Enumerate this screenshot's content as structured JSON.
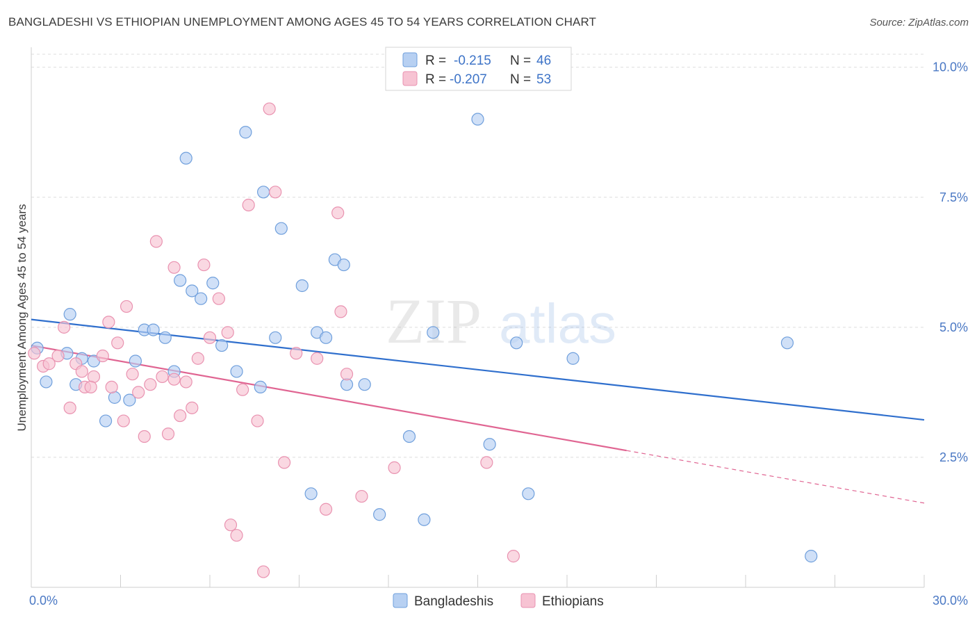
{
  "header": {
    "title": "BANGLADESHI VS ETHIOPIAN UNEMPLOYMENT AMONG AGES 45 TO 54 YEARS CORRELATION CHART",
    "source": "Source: ZipAtlas.com"
  },
  "watermark": {
    "zip": "ZIP",
    "atlas": "atlas"
  },
  "stats_legend": [
    {
      "r_label": "R =",
      "r_value": "-0.215",
      "n_label": "N =",
      "n_value": "46"
    },
    {
      "r_label": "R =",
      "r_value": "-0.207",
      "n_label": "N =",
      "n_value": "53"
    }
  ],
  "chart_data": {
    "type": "scatter",
    "title": "BANGLADESHI VS ETHIOPIAN UNEMPLOYMENT AMONG AGES 45 TO 54 YEARS CORRELATION CHART",
    "xlabel": "",
    "ylabel": "Unemployment Among Ages 45 to 54 years",
    "xlim": [
      0,
      30
    ],
    "ylim": [
      0,
      10.25
    ],
    "x_tick_labels": [
      "0.0%",
      "30.0%"
    ],
    "y_ticks": [
      2.5,
      5.0,
      7.5,
      10.0
    ],
    "y_tick_labels": [
      "2.5%",
      "5.0%",
      "7.5%",
      "10.0%"
    ],
    "grid": true,
    "legend_position": "bottom-center",
    "colors": {
      "bangladeshis_fill": "#b7d0f2",
      "bangladeshis_stroke": "#6f9fdc",
      "bangladeshis_line": "#2f6fcd",
      "ethiopians_fill": "#f7c3d3",
      "ethiopians_stroke": "#e992b0",
      "ethiopians_line": "#e06592"
    },
    "series": [
      {
        "name": "Bangladeshis",
        "points": [
          [
            0.2,
            4.6
          ],
          [
            0.5,
            3.95
          ],
          [
            1.2,
            4.5
          ],
          [
            1.5,
            3.9
          ],
          [
            1.7,
            4.4
          ],
          [
            2.1,
            4.35
          ],
          [
            2.5,
            3.2
          ],
          [
            2.8,
            3.65
          ],
          [
            3.3,
            3.6
          ],
          [
            3.5,
            4.35
          ],
          [
            3.8,
            4.95
          ],
          [
            4.1,
            4.95
          ],
          [
            4.5,
            4.8
          ],
          [
            4.8,
            4.15
          ],
          [
            5.0,
            5.9
          ],
          [
            5.2,
            8.25
          ],
          [
            5.4,
            5.7
          ],
          [
            5.7,
            5.55
          ],
          [
            6.1,
            5.85
          ],
          [
            6.4,
            4.65
          ],
          [
            6.9,
            4.15
          ],
          [
            7.2,
            8.75
          ],
          [
            7.7,
            3.85
          ],
          [
            7.8,
            7.6
          ],
          [
            8.2,
            4.8
          ],
          [
            8.4,
            6.9
          ],
          [
            9.1,
            5.8
          ],
          [
            9.4,
            1.8
          ],
          [
            9.6,
            4.9
          ],
          [
            9.9,
            4.8
          ],
          [
            10.2,
            6.3
          ],
          [
            10.5,
            6.2
          ],
          [
            10.6,
            3.9
          ],
          [
            11.2,
            3.9
          ],
          [
            11.7,
            1.4
          ],
          [
            12.7,
            2.9
          ],
          [
            13.2,
            1.3
          ],
          [
            13.5,
            4.9
          ],
          [
            15.0,
            9.0
          ],
          [
            15.4,
            2.75
          ],
          [
            16.3,
            4.7
          ],
          [
            16.7,
            1.8
          ],
          [
            18.2,
            4.4
          ],
          [
            25.4,
            4.7
          ],
          [
            26.2,
            0.6
          ],
          [
            1.3,
            5.25
          ]
        ]
      },
      {
        "name": "Ethiopians",
        "points": [
          [
            0.1,
            4.5
          ],
          [
            0.4,
            4.25
          ],
          [
            0.6,
            4.3
          ],
          [
            0.9,
            4.45
          ],
          [
            1.1,
            5.0
          ],
          [
            1.3,
            3.45
          ],
          [
            1.5,
            4.3
          ],
          [
            1.7,
            4.15
          ],
          [
            1.8,
            3.85
          ],
          [
            2.1,
            4.05
          ],
          [
            2.4,
            4.45
          ],
          [
            2.6,
            5.1
          ],
          [
            2.7,
            3.85
          ],
          [
            2.9,
            4.7
          ],
          [
            3.1,
            3.2
          ],
          [
            3.2,
            5.4
          ],
          [
            3.4,
            4.1
          ],
          [
            3.6,
            3.75
          ],
          [
            3.8,
            2.9
          ],
          [
            4.0,
            3.9
          ],
          [
            4.2,
            6.65
          ],
          [
            4.4,
            4.05
          ],
          [
            4.6,
            2.95
          ],
          [
            4.8,
            6.15
          ],
          [
            5.0,
            3.3
          ],
          [
            5.2,
            3.95
          ],
          [
            5.4,
            3.45
          ],
          [
            5.6,
            4.4
          ],
          [
            5.8,
            6.2
          ],
          [
            6.0,
            4.8
          ],
          [
            6.3,
            5.55
          ],
          [
            6.6,
            4.9
          ],
          [
            6.7,
            1.2
          ],
          [
            6.9,
            1.0
          ],
          [
            7.1,
            3.8
          ],
          [
            7.3,
            7.35
          ],
          [
            7.6,
            3.2
          ],
          [
            7.8,
            0.3
          ],
          [
            8.0,
            9.2
          ],
          [
            8.2,
            7.6
          ],
          [
            8.5,
            2.4
          ],
          [
            8.9,
            4.5
          ],
          [
            9.6,
            4.4
          ],
          [
            9.9,
            1.5
          ],
          [
            10.3,
            7.2
          ],
          [
            10.4,
            5.3
          ],
          [
            10.6,
            4.1
          ],
          [
            11.1,
            1.75
          ],
          [
            12.2,
            2.3
          ],
          [
            15.3,
            2.4
          ],
          [
            16.2,
            0.6
          ],
          [
            4.8,
            4.0
          ],
          [
            2.0,
            3.85
          ]
        ]
      }
    ],
    "trendlines": [
      {
        "name": "Bangladeshis",
        "x": [
          0,
          30
        ],
        "y": [
          5.15,
          3.22
        ],
        "dashed_from_x": null
      },
      {
        "name": "Ethiopians",
        "x": [
          0,
          30
        ],
        "y": [
          4.65,
          1.62
        ],
        "dashed_from_x": 20.0
      }
    ]
  },
  "bottom_legend": [
    {
      "label": "Bangladeshis"
    },
    {
      "label": "Ethiopians"
    }
  ]
}
